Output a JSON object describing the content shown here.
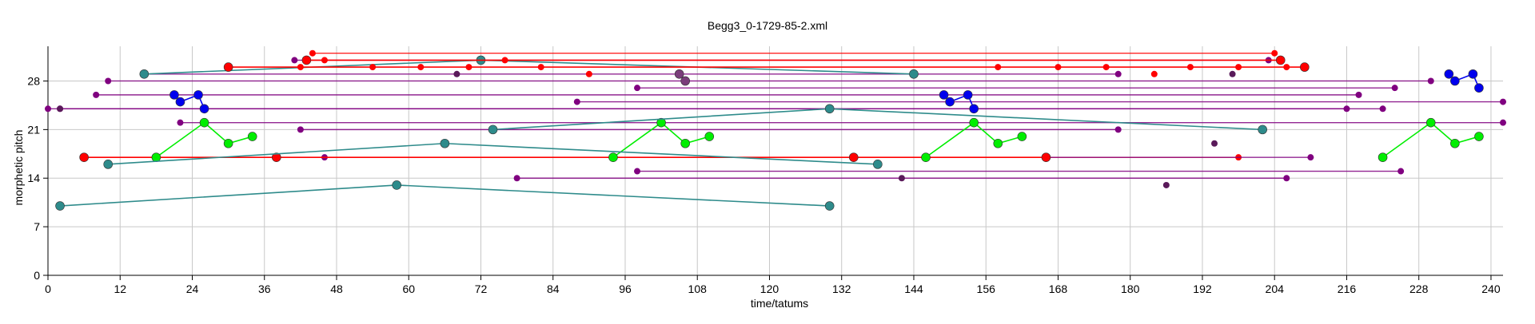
{
  "chart_data": {
    "type": "scatter",
    "title": "Begg3_0-1729-85-2.xml",
    "xlabel": "time/tatums",
    "ylabel": "morphetic pitch",
    "xlim": [
      0,
      242
    ],
    "ylim": [
      0,
      33
    ],
    "xticks": [
      0,
      12,
      24,
      36,
      48,
      60,
      72,
      84,
      96,
      108,
      120,
      132,
      144,
      156,
      168,
      180,
      192,
      204,
      216,
      228,
      240
    ],
    "yticks": [
      0,
      7,
      14,
      21,
      28
    ],
    "grid": true,
    "legend": "none",
    "series": [
      {
        "color": "#2e8b8b",
        "x": [
          2,
          58,
          130
        ],
        "y": [
          10,
          13,
          10
        ]
      },
      {
        "color": "#ff0000",
        "x": [
          6,
          38,
          134,
          166
        ],
        "y": [
          17,
          17,
          17,
          17
        ]
      },
      {
        "color": "#00ee00",
        "x": [
          18,
          26,
          30,
          34
        ],
        "y": [
          17,
          22,
          19,
          20
        ]
      },
      {
        "color": "#00ee00",
        "x": [
          94,
          102,
          106,
          110
        ],
        "y": [
          17,
          22,
          19,
          20
        ]
      },
      {
        "color": "#00ee00",
        "x": [
          146,
          154,
          158,
          162
        ],
        "y": [
          17,
          22,
          19,
          20
        ]
      },
      {
        "color": "#00ee00",
        "x": [
          222,
          230,
          234,
          238
        ],
        "y": [
          17,
          22,
          19,
          20
        ]
      },
      {
        "color": "#0000ee",
        "x": [
          21,
          22,
          25,
          26
        ],
        "y": [
          26,
          25,
          26,
          24
        ]
      },
      {
        "color": "#0000ee",
        "x": [
          149,
          150,
          153,
          154
        ],
        "y": [
          26,
          25,
          26,
          24
        ]
      },
      {
        "color": "#0000ee",
        "x": [
          233,
          234,
          237,
          238
        ],
        "y": [
          29,
          28,
          29,
          27
        ]
      },
      {
        "color": "#2e8b8b",
        "x": [
          16,
          72,
          144
        ],
        "y": [
          29,
          31,
          29
        ]
      },
      {
        "color": "#2e8b8b",
        "x": [
          10,
          66,
          138
        ],
        "y": [
          16,
          19,
          16
        ]
      },
      {
        "color": "#2e8b8b",
        "x": [
          74,
          130,
          202
        ],
        "y": [
          21,
          24,
          21
        ]
      },
      {
        "color": "#7a3d7a",
        "x": [
          105,
          106
        ],
        "y": [
          29,
          28
        ]
      },
      {
        "color": "#ff0000",
        "x": [
          43,
          205
        ],
        "y": [
          31,
          31
        ]
      },
      {
        "color": "#ff0000",
        "x": [
          30,
          209
        ],
        "y": [
          30,
          30
        ]
      }
    ],
    "spans": [
      {
        "color": "#ff0000",
        "y": 17,
        "x_start": 6,
        "x_end": 198
      },
      {
        "color": "#800080",
        "y": 17,
        "x_start": 46,
        "x_end": 210
      },
      {
        "color": "#800080",
        "y": 24,
        "x_start": 0,
        "x_end": 222
      },
      {
        "color": "#800080",
        "y": 24,
        "x_start": 2,
        "x_end": 216
      },
      {
        "color": "#800080",
        "y": 29,
        "x_start": 16,
        "x_end": 178
      },
      {
        "color": "#800080",
        "y": 28,
        "x_start": 10,
        "x_end": 230
      },
      {
        "color": "#800080",
        "y": 26,
        "x_start": 8,
        "x_end": 218
      },
      {
        "color": "#800080",
        "y": 27,
        "x_start": 98,
        "x_end": 224
      },
      {
        "color": "#800080",
        "y": 25,
        "x_start": 88,
        "x_end": 242
      },
      {
        "color": "#800080",
        "y": 22,
        "x_start": 22,
        "x_end": 242
      },
      {
        "color": "#800080",
        "y": 21,
        "x_start": 42,
        "x_end": 178
      },
      {
        "color": "#800080",
        "y": 15,
        "x_start": 98,
        "x_end": 225
      },
      {
        "color": "#800080",
        "y": 14,
        "x_start": 78,
        "x_end": 206
      },
      {
        "color": "#800080",
        "y": 31,
        "x_start": 41,
        "x_end": 203
      },
      {
        "color": "#ff0000",
        "y": 32,
        "x_start": 44,
        "x_end": 204
      }
    ],
    "extra_points": [
      {
        "color": "#5a1a5a",
        "x": [
          2,
          68,
          142,
          186,
          194,
          197
        ],
        "y": [
          24,
          29,
          14,
          13,
          19,
          29
        ]
      },
      {
        "color": "#ff0000",
        "x": [
          42,
          46,
          54,
          62,
          70,
          76,
          82,
          90,
          158,
          168,
          176,
          184,
          190,
          198,
          206
        ],
        "y": [
          30,
          31,
          30,
          30,
          30,
          31,
          30,
          29,
          30,
          30,
          30,
          29,
          30,
          30,
          30
        ]
      }
    ]
  }
}
